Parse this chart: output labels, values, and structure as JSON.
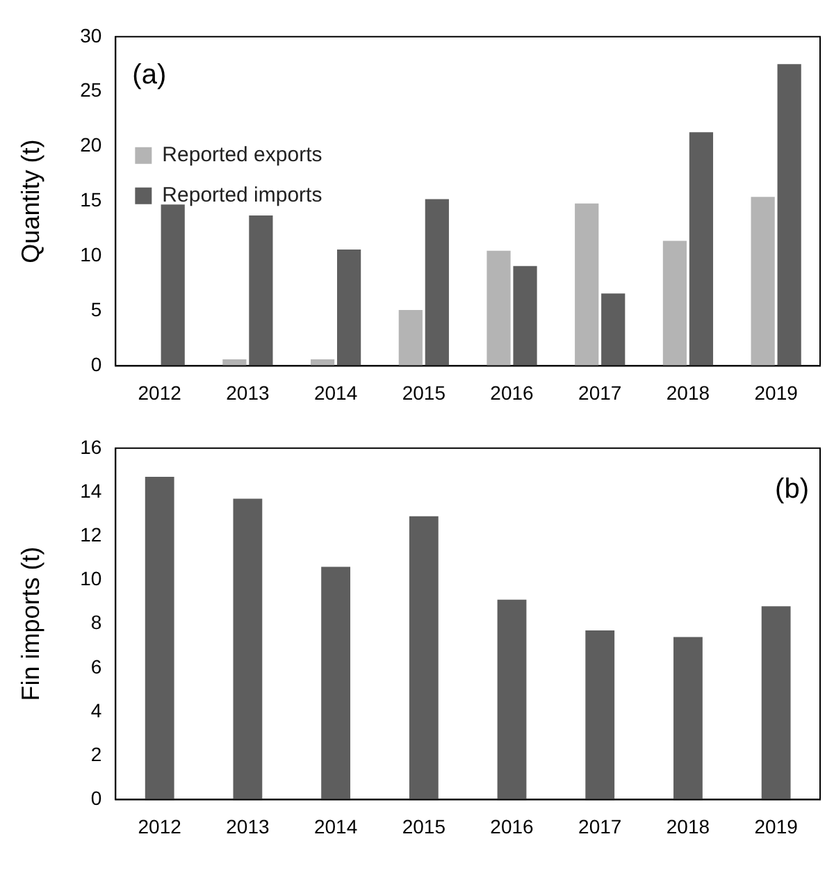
{
  "chart_data": [
    {
      "type": "bar",
      "ylabel": "Quantity (t)",
      "annotations": [
        "(a)"
      ],
      "categories": [
        "2012",
        "2013",
        "2014",
        "2015",
        "2016",
        "2017",
        "2018",
        "2019"
      ],
      "series": [
        {
          "name": "Reported exports",
          "color": "#b4b4b4",
          "values": [
            0,
            0.6,
            0.6,
            5.1,
            10.5,
            14.8,
            11.4,
            15.4
          ]
        },
        {
          "name": "Reported imports",
          "color": "#5e5e5e",
          "values": [
            14.7,
            13.7,
            10.6,
            15.2,
            9.1,
            6.6,
            21.3,
            27.5
          ]
        }
      ],
      "ylim": [
        0,
        30
      ],
      "yticks": [
        0,
        5,
        10,
        15,
        20,
        25,
        30
      ],
      "grid": false,
      "legend": "top"
    },
    {
      "type": "bar",
      "ylabel": "Fin imports (t)",
      "annotations": [
        "(b)"
      ],
      "categories": [
        "2012",
        "2013",
        "2014",
        "2015",
        "2016",
        "2017",
        "2018",
        "2019"
      ],
      "series": [
        {
          "color": "#5e5e5e",
          "values": [
            14.7,
            13.7,
            10.6,
            12.9,
            9.1,
            7.7,
            7.4,
            8.8
          ]
        }
      ],
      "ylim": [
        0,
        16
      ],
      "yticks": [
        0,
        2,
        4,
        6,
        8,
        10,
        12,
        14,
        16
      ],
      "grid": false,
      "legend": false
    }
  ]
}
